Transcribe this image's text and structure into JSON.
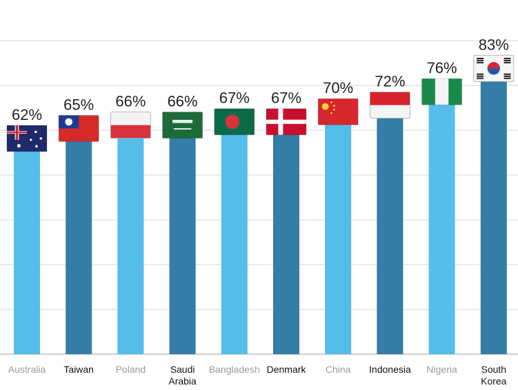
{
  "chart_data": {
    "type": "bar",
    "title": "",
    "xlabel": "",
    "ylabel": "",
    "ylim": [
      0,
      85
    ],
    "grid": true,
    "categories": [
      {
        "label": [
          "Australia"
        ],
        "value": 62,
        "value_label": "62%",
        "shade": "light",
        "flag": "australia-flag-icon"
      },
      {
        "label": [
          "Taiwan"
        ],
        "value": 65,
        "value_label": "65%",
        "shade": "dark",
        "flag": "taiwan-flag-icon"
      },
      {
        "label": [
          "Poland"
        ],
        "value": 66,
        "value_label": "66%",
        "shade": "light",
        "flag": "poland-flag-icon"
      },
      {
        "label": [
          "Saudi",
          "Arabia"
        ],
        "value": 66,
        "value_label": "66%",
        "shade": "dark",
        "flag": "saudi-arabia-flag-icon"
      },
      {
        "label": [
          "Bangladesh"
        ],
        "value": 67,
        "value_label": "67%",
        "shade": "light",
        "flag": "bangladesh-flag-icon"
      },
      {
        "label": [
          "Denmark"
        ],
        "value": 67,
        "value_label": "67%",
        "shade": "dark",
        "flag": "denmark-flag-icon"
      },
      {
        "label": [
          "China"
        ],
        "value": 70,
        "value_label": "70%",
        "shade": "light",
        "flag": "china-flag-icon"
      },
      {
        "label": [
          "Indonesia"
        ],
        "value": 72,
        "value_label": "72%",
        "shade": "dark",
        "flag": "indonesia-flag-icon"
      },
      {
        "label": [
          "Nigeria"
        ],
        "value": 76,
        "value_label": "76%",
        "shade": "light",
        "flag": "nigeria-flag-icon"
      },
      {
        "label": [
          "South",
          "Korea"
        ],
        "value": 83,
        "value_label": "83%",
        "shade": "dark",
        "flag": "south-korea-flag-icon"
      }
    ],
    "colors": {
      "light": "#55bdea",
      "dark": "#337da6"
    }
  }
}
